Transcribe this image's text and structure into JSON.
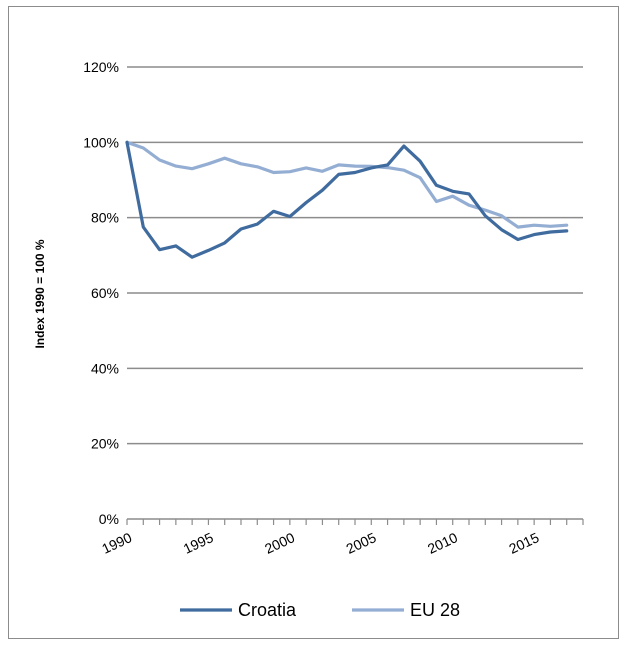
{
  "chart_data": {
    "type": "line",
    "title": "",
    "xlabel": "",
    "ylabel": "Index 1990 = 100 %",
    "x": [
      1990,
      1991,
      1992,
      1993,
      1994,
      1995,
      1996,
      1997,
      1998,
      1999,
      2000,
      2001,
      2002,
      2003,
      2004,
      2005,
      2006,
      2007,
      2008,
      2009,
      2010,
      2011,
      2012,
      2013,
      2014,
      2015,
      2016,
      2017
    ],
    "x_tick_labels": [
      "1990",
      "1995",
      "2000",
      "2005",
      "2010",
      "2015"
    ],
    "x_ticks": [
      1990,
      1995,
      2000,
      2005,
      2010,
      2015
    ],
    "xlim": [
      1990,
      2018
    ],
    "ylim": [
      0,
      120
    ],
    "y_ticks": [
      0,
      20,
      40,
      60,
      80,
      100,
      120
    ],
    "y_tick_labels": [
      "0%",
      "20%",
      "40%",
      "60%",
      "80%",
      "100%",
      "120%"
    ],
    "grid": "horizontal",
    "legend_position": "bottom",
    "series": [
      {
        "name": "Croatia",
        "color": "#3f6b9e",
        "values": [
          100,
          77.5,
          71.5,
          72.5,
          69.5,
          71.3,
          73.3,
          77,
          78.3,
          81.7,
          80.3,
          84,
          87.3,
          91.5,
          92,
          93.2,
          94,
          99,
          95,
          88.6,
          87,
          86.3,
          80.5,
          76.8,
          74.2,
          75.5,
          76.2,
          76.5
        ]
      },
      {
        "name": "EU 28",
        "color": "#94aed3",
        "values": [
          100,
          98.5,
          95.3,
          93.7,
          93,
          94.3,
          95.8,
          94.3,
          93.5,
          92,
          92.2,
          93.2,
          92.3,
          94,
          93.7,
          93.6,
          93.3,
          92.6,
          90.6,
          84.3,
          85.7,
          83.3,
          82,
          80.5,
          77.5,
          78,
          77.7,
          78
        ]
      }
    ]
  }
}
